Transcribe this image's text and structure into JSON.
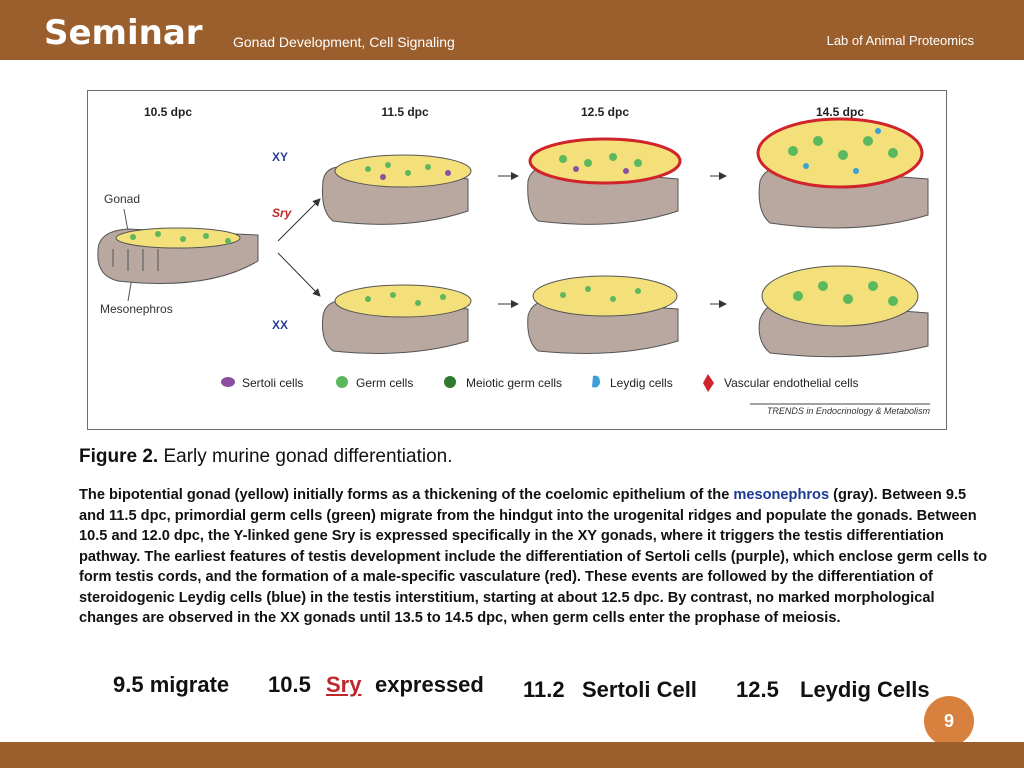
{
  "header": {
    "brand": "Seminar",
    "subtitle": "Gonad Development, Cell Signaling",
    "lab": "Lab of Animal Proteomics"
  },
  "figure": {
    "stages": [
      "10.5 dpc",
      "11.5 dpc",
      "12.5 dpc",
      "14.5 dpc"
    ],
    "labels": {
      "xy": "XY",
      "sry": "Sry",
      "xx": "XX",
      "gonad": "Gonad",
      "mesonephros": "Mesonephros"
    },
    "legend": [
      "Sertoli cells",
      "Germ cells",
      "Meiotic germ cells",
      "Leydig cells",
      "Vascular endothelial cells"
    ],
    "source": "TRENDS in Endocrinology & Metabolism",
    "colors": {
      "gonad": "#f4e07a",
      "mesonephros": "#b8a8a0",
      "germ": "#5cb85c",
      "sertoli": "#8a4fa0",
      "leydig": "#3aa0d8",
      "vascular": "#d0232a"
    }
  },
  "caption": {
    "label": "Figure 2.",
    "title": " Early murine gonad differentiation."
  },
  "body": {
    "part1": "The bipotential gonad (yellow) initially forms as a thickening of the coelomic epithelium of the ",
    "highlight": "mesonephros",
    "part2": " (gray). Between 9.5 and 11.5 dpc, primordial germ cells (green) migrate from the hindgut into the urogenital ridges and populate the gonads. Between 10.5 and 12.0 dpc, the Y-linked gene Sry is expressed specifically in the XY gonads, where it triggers the testis differentiation pathway. The earliest features of testis development include the differentiation of Sertoli cells (purple), which enclose germ cells to form testis cords, and the formation of a male-specific vasculature (red). These events are followed by the differentiation of steroidogenic Leydig cells (blue) in the testis interstitium, starting at about 12.5 dpc. By contrast, no marked morphological changes are observed in the XX gonads until 13.5 to 14.5 dpc, when germ cells enter the prophase of meiosis."
  },
  "timeline": {
    "t1": "9.5 migrate",
    "t2": "10.5",
    "sry": "Sry",
    "t2b": "expressed",
    "t3": "11.2",
    "t3b": "Sertoli Cell",
    "t4": "12.5",
    "t4b": "Leydig Cells"
  },
  "page_number": "9"
}
